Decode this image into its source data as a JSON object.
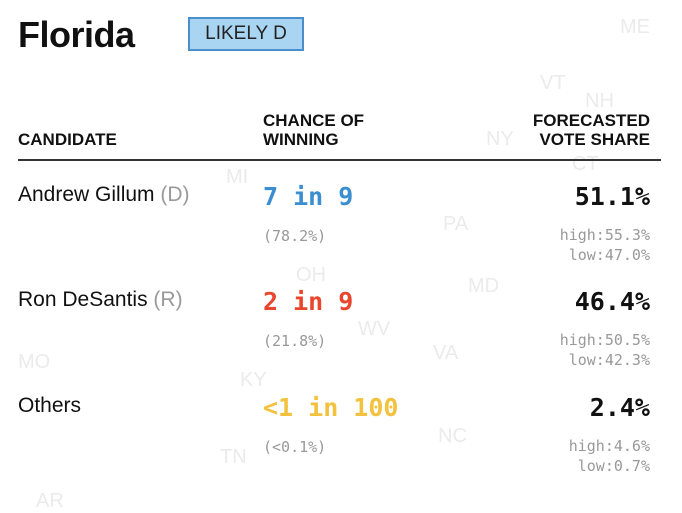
{
  "map": {
    "labels": [
      "ME",
      "VT",
      "NH",
      "NY",
      "CT",
      "MI",
      "PA",
      "OH",
      "MD",
      "WV",
      "VA",
      "MO",
      "KY",
      "NC",
      "TN",
      "AR"
    ]
  },
  "header": {
    "title": "Florida",
    "badge": "LIKELY D"
  },
  "table": {
    "columns": [
      "CANDIDATE",
      "CHANCE OF WINNING",
      "FORECASTED VOTE SHARE"
    ],
    "rows": [
      {
        "name": "Andrew Gillum",
        "party": "(D)",
        "chance": "7 in 9",
        "chance_pct": "(78.2%)",
        "vote": "51.1%",
        "high": "high:55.3%",
        "low": "low:47.0%",
        "color": "#3b8fd0"
      },
      {
        "name": "Ron DeSantis",
        "party": "(R)",
        "chance": "2 in 9",
        "chance_pct": "(21.8%)",
        "vote": "46.4%",
        "high": "high:50.5%",
        "low": "low:42.3%",
        "color": "#e8462d"
      },
      {
        "name": "Others",
        "party": null,
        "chance": "<1 in 100",
        "chance_pct": "(<0.1%)",
        "vote": "2.4%",
        "high": "high:4.6%",
        "low": "low:0.7%",
        "color": "#f2c23e"
      }
    ]
  }
}
